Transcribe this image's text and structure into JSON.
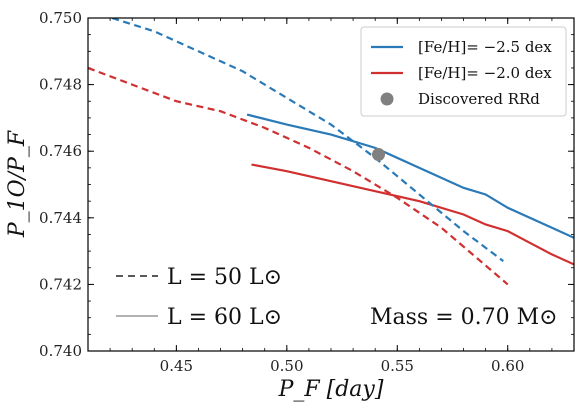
{
  "chart_data": {
    "type": "line",
    "xlabel": "P_F [day]",
    "ylabel": "P_1O/P_F",
    "xlim": [
      0.41,
      0.63
    ],
    "ylim": [
      0.74,
      0.75
    ],
    "x_ticks": [
      0.45,
      0.5,
      0.55,
      0.6
    ],
    "y_ticks": [
      0.74,
      0.742,
      0.744,
      0.746,
      0.748,
      0.75
    ],
    "x_tick_labels": [
      "0.45",
      "0.50",
      "0.55",
      "0.60"
    ],
    "y_tick_labels": [
      "0.740",
      "0.742",
      "0.744",
      "0.746",
      "0.748",
      "0.750"
    ],
    "colors": {
      "blue": "#2a7ab8",
      "red": "#d03030",
      "point": "#808080"
    },
    "series": [
      {
        "key": "blue_solid",
        "color": "blue",
        "style": "solid",
        "x": [
          0.482,
          0.5,
          0.52,
          0.54,
          0.56,
          0.58,
          0.59,
          0.6,
          0.62,
          0.63
        ],
        "y": [
          0.7471,
          0.7468,
          0.7465,
          0.7461,
          0.7455,
          0.7449,
          0.7447,
          0.7443,
          0.7437,
          0.7434
        ]
      },
      {
        "key": "red_solid",
        "color": "red",
        "style": "solid",
        "x": [
          0.484,
          0.5,
          0.52,
          0.54,
          0.56,
          0.58,
          0.59,
          0.6,
          0.62,
          0.63
        ],
        "y": [
          0.7456,
          0.7454,
          0.7451,
          0.7448,
          0.7445,
          0.7441,
          0.7438,
          0.7436,
          0.7429,
          0.7426
        ]
      },
      {
        "key": "blue_dashed",
        "color": "blue",
        "style": "dashed",
        "x": [
          0.416,
          0.44,
          0.46,
          0.48,
          0.5,
          0.52,
          0.54,
          0.56,
          0.58,
          0.598
        ],
        "y": [
          0.7501,
          0.7496,
          0.749,
          0.7484,
          0.7476,
          0.7468,
          0.7458,
          0.7447,
          0.7436,
          0.7427
        ]
      },
      {
        "key": "red_dashed",
        "color": "red",
        "style": "dashed",
        "x": [
          0.41,
          0.43,
          0.45,
          0.47,
          0.49,
          0.51,
          0.53,
          0.55,
          0.57,
          0.6
        ],
        "y": [
          0.7485,
          0.748,
          0.7475,
          0.7472,
          0.7467,
          0.7461,
          0.7454,
          0.7446,
          0.7437,
          0.742
        ]
      }
    ],
    "points": [
      {
        "label_key": "legend.items.2",
        "x": 0.5415,
        "y": 0.7459,
        "color": "point"
      }
    ],
    "legend": {
      "placement": "top-right",
      "items": [
        {
          "text": "[Fe/H]= −2.5 dex",
          "color": "blue",
          "kind": "line"
        },
        {
          "text": "[Fe/H]= −2.0 dex",
          "color": "red",
          "kind": "line"
        },
        {
          "text": "Discovered RRd",
          "color": "point",
          "kind": "marker"
        }
      ]
    },
    "annotations": {
      "dashed_label": "L = 50 L⊙",
      "solid_label": "L = 60 L⊙",
      "mass_label": "Mass = 0.70 M⊙"
    }
  }
}
